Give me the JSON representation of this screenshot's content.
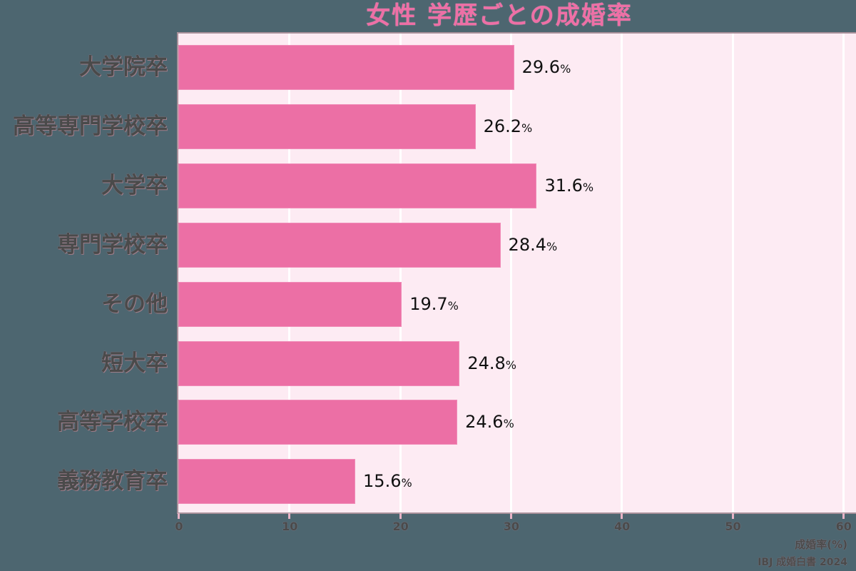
{
  "chart_data": {
    "type": "bar",
    "orientation": "horizontal",
    "title": "女性 学歴ごとの成婚率",
    "categories": [
      "大学院卒",
      "高等専門学校卒",
      "大学卒",
      "専門学校卒",
      "その他",
      "短大卒",
      "高等学校卒",
      "義務教育卒"
    ],
    "values": [
      29.6,
      26.2,
      31.6,
      28.4,
      19.7,
      24.8,
      24.6,
      15.6
    ],
    "value_labels": [
      "29.6",
      "26.2",
      "31.6",
      "28.4",
      "19.7",
      "24.8",
      "24.6",
      "15.6"
    ],
    "value_suffix": "%",
    "xlabel": "成婚率(%)",
    "ylabel": "",
    "xlim": [
      0,
      60
    ],
    "xticks": [
      "0",
      "10",
      "20",
      "30",
      "40",
      "50",
      "60"
    ],
    "grid": true,
    "legend": null,
    "source": "IBJ 成婚白書 2024",
    "colors": {
      "bar": "#ec6fa5",
      "plot_background": "#fdebf3",
      "title": "#ee6fa6",
      "text": "#4a4a4a",
      "page_background": "#4d6670"
    }
  }
}
